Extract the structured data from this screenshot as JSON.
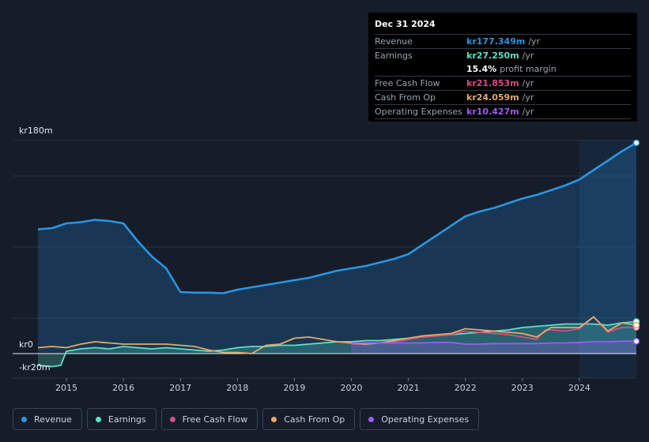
{
  "chart_data": {
    "type": "area",
    "title": "",
    "xlabel": "",
    "ylabel": "",
    "ylim": [
      -20,
      180
    ],
    "xlim": [
      2014.5,
      2025.0
    ],
    "x_ticks": [
      "2015",
      "2016",
      "2017",
      "2018",
      "2019",
      "2020",
      "2021",
      "2022",
      "2023",
      "2024"
    ],
    "y_labels": [
      {
        "label": "kr180m",
        "value": 180
      },
      {
        "label": "kr0",
        "value": 0
      },
      {
        "label": "-kr20m",
        "value": -20
      }
    ],
    "highlight_from": 2024.0,
    "series": [
      {
        "name": "Revenue",
        "color": "#2b94e3",
        "fill": true,
        "x": [
          2014.5,
          2014.75,
          2015.0,
          2015.25,
          2015.5,
          2015.75,
          2016.0,
          2016.25,
          2016.5,
          2016.75,
          2017.0,
          2017.25,
          2017.5,
          2017.75,
          2018.0,
          2018.25,
          2018.5,
          2018.75,
          2019.0,
          2019.25,
          2019.5,
          2019.75,
          2020.0,
          2020.25,
          2020.5,
          2020.75,
          2021.0,
          2021.25,
          2021.5,
          2021.75,
          2022.0,
          2022.25,
          2022.5,
          2022.75,
          2023.0,
          2023.25,
          2023.5,
          2023.75,
          2024.0,
          2024.25,
          2024.5,
          2024.75,
          2025.0
        ],
        "values": [
          105,
          106,
          110,
          111,
          113,
          112,
          110,
          95,
          82,
          72,
          52,
          51.5,
          51.5,
          51,
          54,
          56,
          58,
          60,
          62,
          64,
          67,
          70,
          72,
          74,
          77,
          80,
          84,
          92,
          100,
          108,
          116,
          120,
          123,
          127,
          131,
          134,
          138,
          142,
          147,
          155,
          163,
          171,
          178
        ]
      },
      {
        "name": "Earnings",
        "color": "#5ee0c7",
        "fill": true,
        "x": [
          2014.5,
          2014.75,
          2014.9,
          2015.0,
          2015.25,
          2015.5,
          2015.75,
          2016.0,
          2016.25,
          2016.5,
          2016.75,
          2017.0,
          2017.25,
          2017.5,
          2017.75,
          2018.0,
          2018.25,
          2018.5,
          2018.75,
          2019.0,
          2019.25,
          2019.5,
          2019.75,
          2020.0,
          2020.25,
          2020.5,
          2020.75,
          2021.0,
          2021.25,
          2021.5,
          2021.75,
          2022.0,
          2022.25,
          2022.5,
          2022.75,
          2023.0,
          2023.25,
          2023.5,
          2023.75,
          2024.0,
          2024.25,
          2024.5,
          2024.75,
          2025.0
        ],
        "values": [
          -10,
          -11,
          -10,
          2,
          4,
          5,
          4,
          6,
          5,
          4,
          5,
          4,
          3,
          2,
          3,
          5,
          6,
          6,
          7,
          7,
          8,
          9,
          10,
          10,
          11,
          11,
          12,
          13,
          14,
          15,
          16,
          17,
          18,
          19,
          20,
          22,
          23,
          24,
          25,
          25,
          25,
          24,
          26,
          27
        ]
      },
      {
        "name": "Free Cash Flow",
        "color": "#d34f87",
        "fill": false,
        "x": [
          2020.0,
          2020.25,
          2020.5,
          2020.75,
          2021.0,
          2021.25,
          2021.5,
          2021.75,
          2022.0,
          2022.25,
          2022.5,
          2022.75,
          2023.0,
          2023.25,
          2023.4,
          2023.5,
          2023.75,
          2024.0,
          2024.25,
          2024.5,
          2024.6,
          2024.75,
          2025.0
        ],
        "values": [
          8,
          8,
          9,
          10,
          12,
          14,
          15,
          16,
          19,
          18,
          17,
          16,
          14,
          12,
          20,
          20,
          19,
          21,
          31,
          18,
          20,
          22,
          22
        ]
      },
      {
        "name": "Cash From Op",
        "color": "#e8a867",
        "fill": false,
        "x": [
          2014.5,
          2014.75,
          2015.0,
          2015.25,
          2015.5,
          2015.75,
          2016.0,
          2016.25,
          2016.5,
          2016.75,
          2017.0,
          2017.25,
          2017.5,
          2017.75,
          2018.0,
          2018.25,
          2018.5,
          2018.75,
          2019.0,
          2019.25,
          2019.5,
          2019.75,
          2020.0,
          2020.25,
          2020.5,
          2020.75,
          2021.0,
          2021.25,
          2021.5,
          2021.75,
          2022.0,
          2022.25,
          2022.5,
          2022.75,
          2023.0,
          2023.25,
          2023.5,
          2023.75,
          2024.0,
          2024.25,
          2024.5,
          2024.75,
          2025.0
        ],
        "values": [
          5,
          6,
          5,
          8,
          10,
          9,
          8,
          8,
          8,
          8,
          7,
          6,
          3,
          1,
          1,
          0,
          7,
          8,
          13,
          14,
          12,
          10,
          9,
          8,
          9,
          11,
          13,
          15,
          16,
          17,
          21,
          20,
          19,
          18,
          17,
          14,
          22,
          22,
          22,
          31,
          19,
          26,
          24
        ]
      },
      {
        "name": "Operating Expenses",
        "color": "#9b5cf0",
        "fill": true,
        "x": [
          2020.0,
          2020.25,
          2020.5,
          2020.75,
          2021.0,
          2021.25,
          2021.5,
          2021.75,
          2022.0,
          2022.25,
          2022.5,
          2022.75,
          2023.0,
          2023.25,
          2023.5,
          2023.75,
          2024.0,
          2024.25,
          2024.5,
          2024.75,
          2025.0
        ],
        "values": [
          9,
          9,
          9,
          9,
          9,
          9,
          9.5,
          9.5,
          8,
          8,
          8.5,
          8.5,
          8.5,
          8.5,
          9,
          9,
          9.5,
          10,
          10,
          10.5,
          10.4
        ]
      }
    ]
  },
  "tooltip": {
    "date": "Dec 31 2024",
    "rows": [
      {
        "label": "Revenue",
        "value": "kr177.349m",
        "unit": "/yr",
        "color": "#2b94e3"
      },
      {
        "label": "Earnings",
        "value": "kr27.250m",
        "unit": "/yr",
        "color": "#5ee0c7"
      },
      {
        "label": "",
        "value": "15.4%",
        "unit": "profit margin",
        "color": "#ffffff"
      },
      {
        "label": "Free Cash Flow",
        "value": "kr21.853m",
        "unit": "/yr",
        "color": "#d34f87"
      },
      {
        "label": "Cash From Op",
        "value": "kr24.059m",
        "unit": "/yr",
        "color": "#e8a867"
      },
      {
        "label": "Operating Expenses",
        "value": "kr10.427m",
        "unit": "/yr",
        "color": "#9b5cf0"
      }
    ]
  },
  "legend": [
    {
      "label": "Revenue",
      "color": "#2b94e3"
    },
    {
      "label": "Earnings",
      "color": "#5ee0c7"
    },
    {
      "label": "Free Cash Flow",
      "color": "#d34f87"
    },
    {
      "label": "Cash From Op",
      "color": "#e8a867"
    },
    {
      "label": "Operating Expenses",
      "color": "#9b5cf0"
    }
  ]
}
